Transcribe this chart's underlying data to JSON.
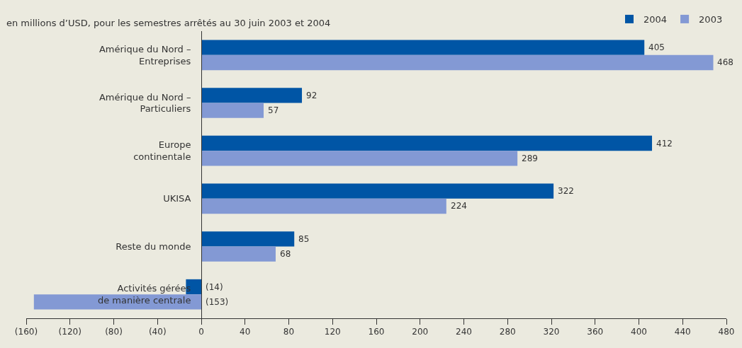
{
  "chart_data": {
    "type": "bar",
    "orientation": "horizontal",
    "subtitle": "en millions d’USD, pour les semestres arrêtés au 30 juin 2003 et 2004",
    "categories": [
      "Amérique du Nord –\nEntreprises",
      "Amérique du Nord –\nParticuliers",
      "Europe\ncontinentale",
      "UKISA",
      "Reste du monde",
      "Activités gérées\nde manière centrale"
    ],
    "series": [
      {
        "name": "2004",
        "color": "#0055a5",
        "values": [
          405,
          92,
          412,
          322,
          85,
          -14
        ],
        "value_labels": [
          "405",
          "92",
          "412",
          "322",
          "85",
          "(14)"
        ]
      },
      {
        "name": "2003",
        "color": "#8399d4",
        "values": [
          468,
          57,
          289,
          224,
          68,
          -153
        ],
        "value_labels": [
          "468",
          "57",
          "289",
          "224",
          "68",
          "(153)"
        ]
      }
    ],
    "xlim": [
      -160,
      480
    ],
    "xticks": [
      {
        "value": -160,
        "label": "(160)"
      },
      {
        "value": -120,
        "label": "(120)"
      },
      {
        "value": -80,
        "label": "(80)"
      },
      {
        "value": -40,
        "label": "(40)"
      },
      0,
      40,
      80,
      120,
      160,
      200,
      240,
      280,
      320,
      360,
      400,
      440,
      480
    ],
    "grid": false,
    "legend": "top right"
  }
}
